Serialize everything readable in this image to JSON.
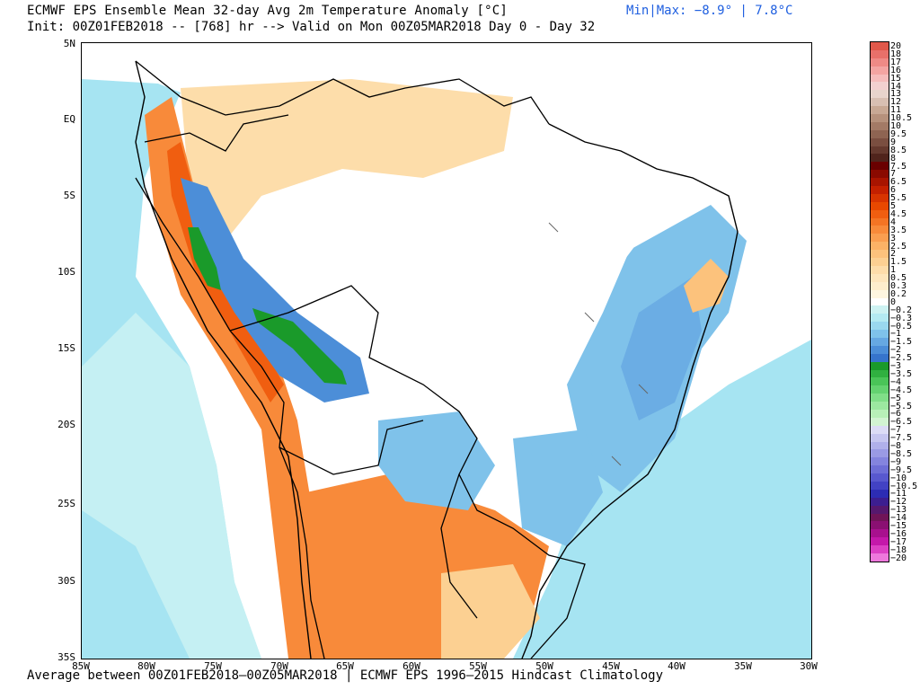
{
  "header": {
    "title": "ECMWF EPS Ensemble Mean 32-day Avg 2m Temperature Anomaly [°C]",
    "subtitle": "Init: 00Z01FEB2018 -- [768] hr --> Valid on Mon 00Z05MAR2018  Day 0 - Day 32",
    "minmax": "Min|Max: −8.9° | 7.8°C"
  },
  "footer": {
    "text": "Average between 00Z01FEB2018–00Z05MAR2018 | ECMWF EPS 1996–2015 Hindcast Climatology"
  },
  "axes": {
    "lat_labels": [
      "5N",
      "EQ",
      "5S",
      "10S",
      "15S",
      "20S",
      "25S",
      "30S",
      "35S"
    ],
    "lon_labels": [
      "85W",
      "80W",
      "75W",
      "70W",
      "65W",
      "60W",
      "55W",
      "50W",
      "45W",
      "40W",
      "35W",
      "30W"
    ]
  },
  "legend": {
    "levels": [
      "20",
      "18",
      "17",
      "16",
      "15",
      "14",
      "13",
      "12",
      "11",
      "10.5",
      "10",
      "9.5",
      "9",
      "8.5",
      "8",
      "7.5",
      "7",
      "6.5",
      "6",
      "5.5",
      "5",
      "4.5",
      "4",
      "3.5",
      "3",
      "2.5",
      "2",
      "1.5",
      "1",
      "0.5",
      "0.3",
      "0.2",
      "0",
      "−0.2",
      "−0.3",
      "−0.5",
      "−1",
      "−1.5",
      "−2",
      "−2.5",
      "−3",
      "−3.5",
      "−4",
      "−4.5",
      "−5",
      "−5.5",
      "−6",
      "−6.5",
      "−7",
      "−7.5",
      "−8",
      "−8.5",
      "−9",
      "−9.5",
      "−10",
      "−10.5",
      "−11",
      "−12",
      "−13",
      "−14",
      "−15",
      "−16",
      "−17",
      "−18",
      "−20"
    ],
    "colors": [
      "#e0584a",
      "#e8706a",
      "#ef8a86",
      "#f4a4a2",
      "#f6bcbc",
      "#f3d0d0",
      "#e8d4cc",
      "#d8bfb2",
      "#c8a894",
      "#b6917c",
      "#a37a66",
      "#8e6452",
      "#7a4e40",
      "#65392e",
      "#50241c",
      "#6a0000",
      "#8a0a00",
      "#a81400",
      "#c42000",
      "#d83400",
      "#e84800",
      "#f05e10",
      "#f47424",
      "#f88a3a",
      "#fa9e50",
      "#fbb266",
      "#fcc27c",
      "#fcd092",
      "#fdddaa",
      "#fde6bc",
      "#fdeecc",
      "#fef6e0",
      "#ffffff",
      "#cdf2f2",
      "#b4eaf2",
      "#9ad8ef",
      "#7fc2ea",
      "#66a8e2",
      "#4c8ed8",
      "#3674cc",
      "#1a9a2a",
      "#30b040",
      "#4ac458",
      "#64d270",
      "#80de88",
      "#9ce8a0",
      "#b8f0b8",
      "#d2f4d2",
      "#dcdcf6",
      "#c6c6f0",
      "#b0b0ea",
      "#9a9ae4",
      "#8484de",
      "#6e6ed6",
      "#5858ce",
      "#4242c4",
      "#2c2cb4",
      "#3c1e90",
      "#56186e",
      "#701458",
      "#8a1072",
      "#a8108e",
      "#c418aa",
      "#dc40c4",
      "#ee78dc"
    ]
  },
  "map": {
    "colors": {
      "ocean_blue": "#a6e4f2",
      "light_cyan": "#cdf2f2",
      "blue": "#7fc2ea",
      "dark_blue": "#4c8ed8",
      "green": "#1a9a2a",
      "light_green": "#64d270",
      "tan": "#fcd092",
      "light_tan": "#fde6bc",
      "orange": "#f88a3a",
      "red_orange": "#f05e10",
      "border": "#000000",
      "river": "#666666"
    }
  }
}
